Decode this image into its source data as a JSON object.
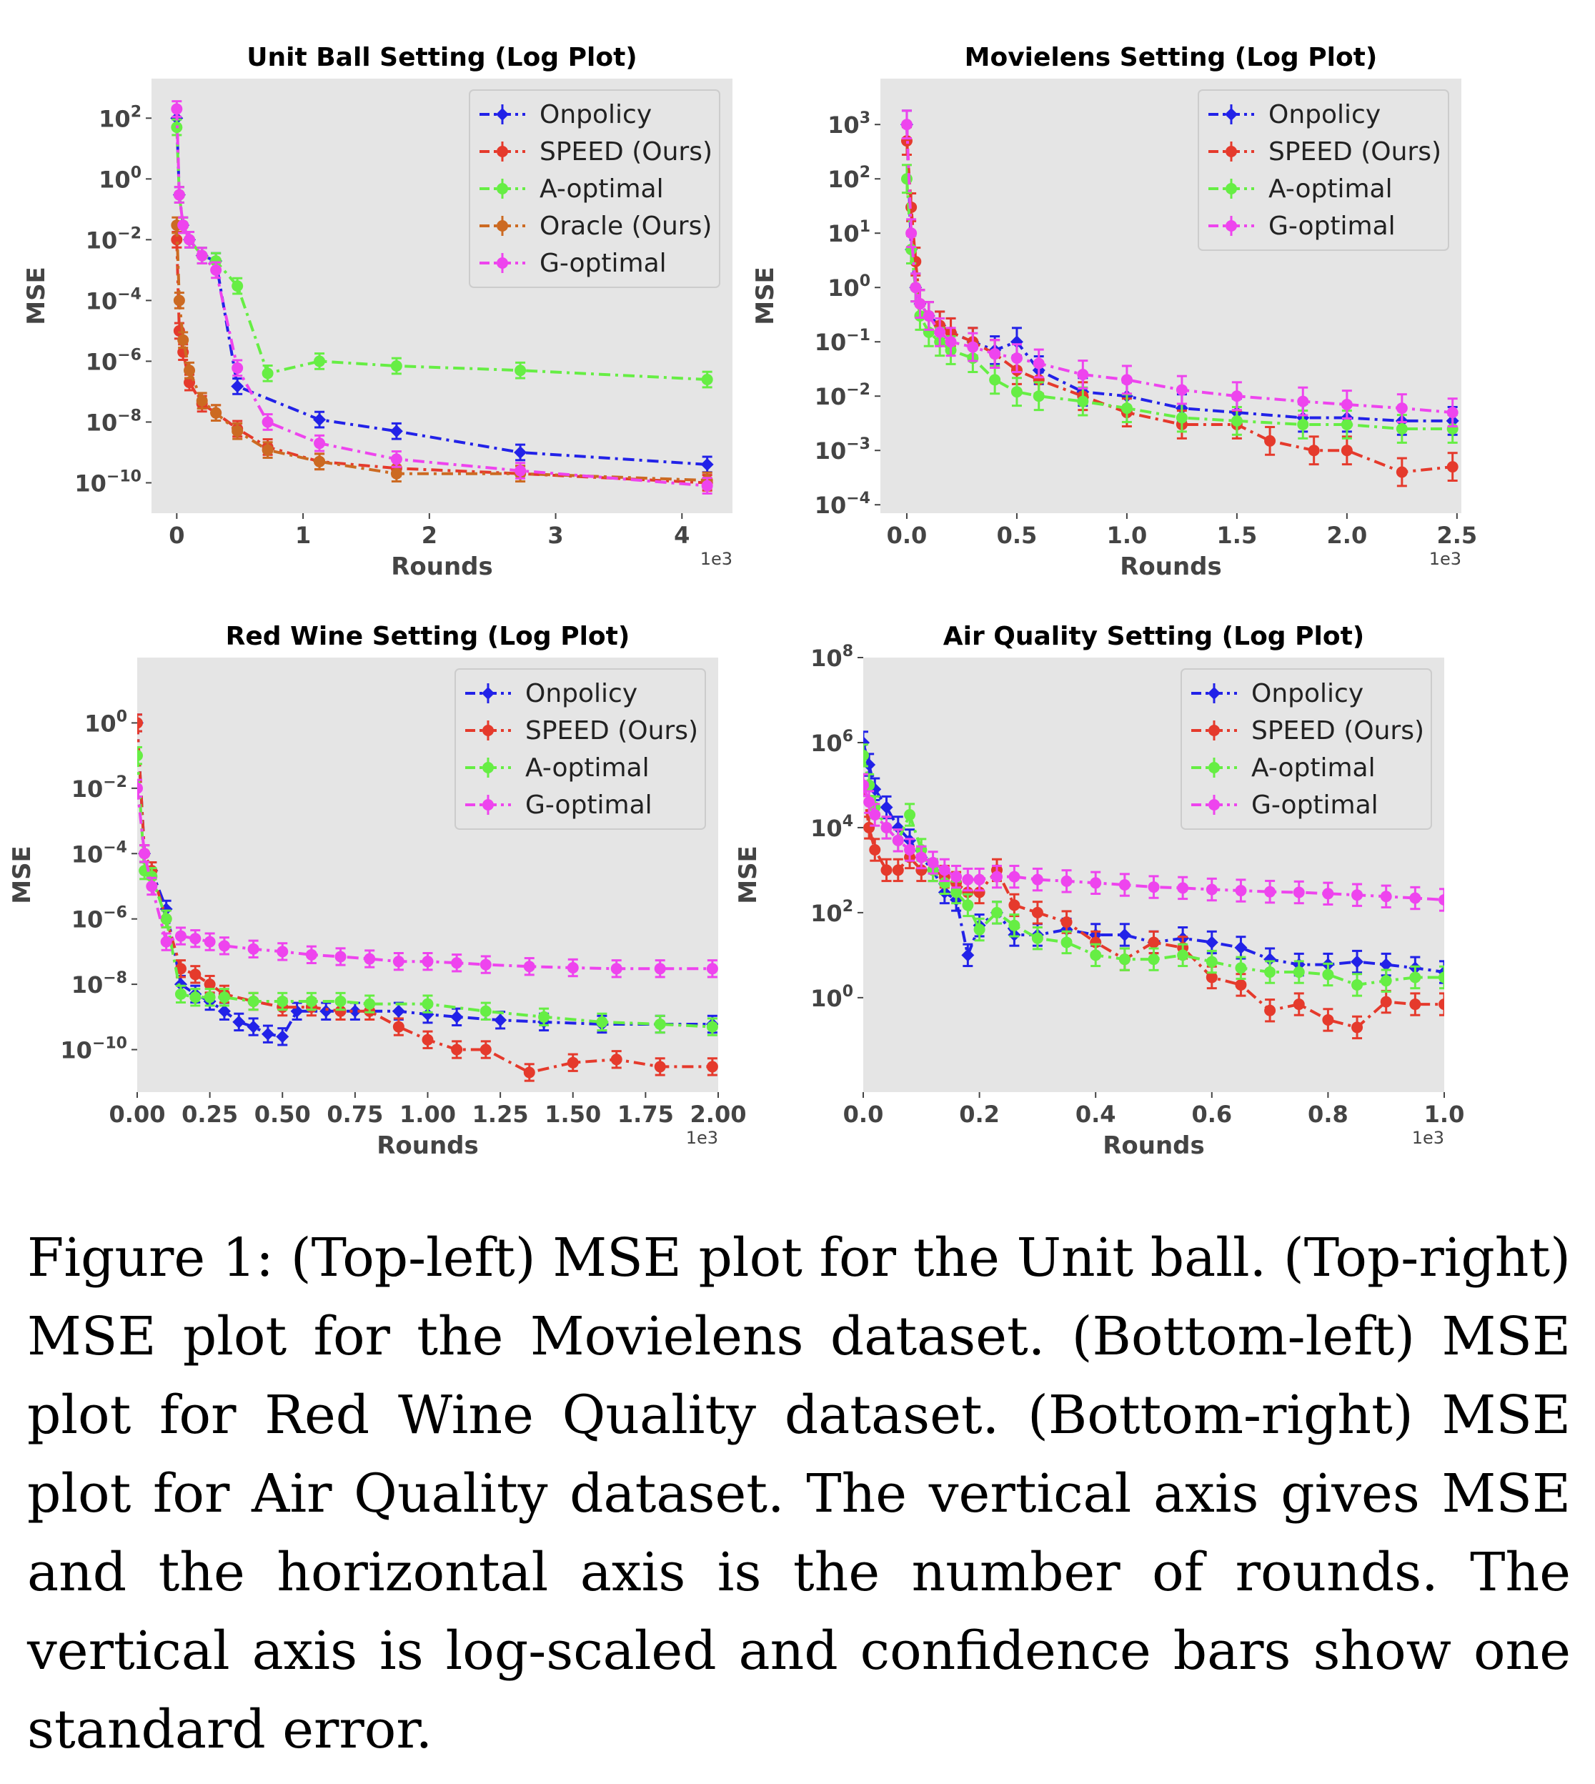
{
  "caption": "Figure 1: (Top-left) MSE plot for the Unit ball. (Top-right) MSE plot for the Movielens dataset. (Bottom-left) MSE plot for Red Wine Quality dataset. (Bottom-right) MSE plot for Air Quality dataset. The vertical axis gives MSE and the horizontal axis is the number of rounds. The vertical axis is log-scaled and confidence bars show one standard error.",
  "colors": {
    "Onpolicy": "#2222e8",
    "SPEED (Ours)": "#e53a2c",
    "A-optimal": "#66ee44",
    "Oracle (Ours)": "#cc6a22",
    "G-optimal": "#ee44ee"
  },
  "chart_data": [
    {
      "type": "line",
      "title": "Unit Ball Setting (Log Plot)",
      "xlabel": "Rounds",
      "ylabel": "MSE",
      "x_offset_label": "1e3",
      "yscale": "log",
      "grid": false,
      "legend": "top-right",
      "xlim": [
        -200,
        4400
      ],
      "ylim": [
        1e-11,
        2000
      ],
      "x_ticks": [
        {
          "v": 0,
          "l": "0"
        },
        {
          "v": 1000,
          "l": "1"
        },
        {
          "v": 2000,
          "l": "2"
        },
        {
          "v": 3000,
          "l": "3"
        },
        {
          "v": 4000,
          "l": "4"
        }
      ],
      "y_ticks": [
        {
          "e": 2,
          "l": "10"
        },
        {
          "e": 0,
          "l": "10"
        },
        {
          "e": -2,
          "l": "10"
        },
        {
          "e": -4,
          "l": "10"
        },
        {
          "e": -6,
          "l": "10"
        },
        {
          "e": -8,
          "l": "10"
        },
        {
          "e": -10,
          "l": "10"
        }
      ],
      "series": [
        {
          "name": "Onpolicy",
          "x": [
            0,
            20,
            50,
            100,
            200,
            310,
            480,
            1130,
            1740,
            2720,
            4200
          ],
          "y": [
            100,
            0.3,
            0.03,
            0.01,
            0.003,
            0.002,
            1.5e-07,
            1.2e-08,
            5e-09,
            1e-09,
            4e-10
          ]
        },
        {
          "name": "SPEED (Ours)",
          "x": [
            0,
            20,
            50,
            100,
            200,
            310,
            480,
            720,
            1130,
            1740,
            2720,
            4200
          ],
          "y": [
            0.01,
            1e-05,
            2e-06,
            2e-07,
            4e-08,
            2e-08,
            6e-09,
            1.5e-09,
            5e-10,
            3e-10,
            2e-10,
            1e-10
          ]
        },
        {
          "name": "A-optimal",
          "x": [
            0,
            20,
            50,
            100,
            200,
            310,
            480,
            720,
            1130,
            1740,
            2720,
            4200
          ],
          "y": [
            50,
            0.3,
            0.03,
            0.01,
            0.003,
            0.002,
            0.0003,
            4e-07,
            1e-06,
            7e-07,
            5e-07,
            2.5e-07
          ]
        },
        {
          "name": "Oracle (Ours)",
          "x": [
            0,
            20,
            50,
            100,
            200,
            310,
            480,
            720,
            1130,
            1740,
            2720,
            4200
          ],
          "y": [
            0.03,
            0.0001,
            5e-06,
            5e-07,
            5e-08,
            2e-08,
            5e-09,
            1.2e-09,
            5e-10,
            2e-10,
            2e-10,
            1.2e-10
          ]
        },
        {
          "name": "G-optimal",
          "x": [
            0,
            20,
            50,
            100,
            200,
            310,
            480,
            720,
            1130,
            1740,
            2720,
            4200
          ],
          "y": [
            200,
            0.3,
            0.03,
            0.01,
            0.003,
            0.001,
            6e-07,
            1e-08,
            2e-09,
            6e-10,
            2.5e-10,
            8e-11
          ]
        }
      ]
    },
    {
      "type": "line",
      "title": "Movielens Setting (Log Plot)",
      "xlabel": "Rounds",
      "ylabel": "MSE",
      "x_offset_label": "1e3",
      "yscale": "log",
      "grid": false,
      "legend": "top-right",
      "xlim": [
        -120,
        2520
      ],
      "ylim": [
        7e-05,
        7000
      ],
      "x_ticks": [
        {
          "v": 0,
          "l": "0.0"
        },
        {
          "v": 500,
          "l": "0.5"
        },
        {
          "v": 1000,
          "l": "1.0"
        },
        {
          "v": 1500,
          "l": "1.5"
        },
        {
          "v": 2000,
          "l": "2.0"
        },
        {
          "v": 2500,
          "l": "2.5"
        }
      ],
      "y_ticks": [
        {
          "e": 3,
          "l": "10"
        },
        {
          "e": 2,
          "l": "10"
        },
        {
          "e": 1,
          "l": "10"
        },
        {
          "e": 0,
          "l": "10"
        },
        {
          "e": -1,
          "l": "10"
        },
        {
          "e": -2,
          "l": "10"
        },
        {
          "e": -3,
          "l": "10"
        },
        {
          "e": -4,
          "l": "10"
        }
      ],
      "series": [
        {
          "name": "Onpolicy",
          "x": [
            0,
            20,
            40,
            60,
            100,
            150,
            200,
            300,
            400,
            500,
            600,
            800,
            1000,
            1250,
            1500,
            1800,
            2000,
            2250,
            2480
          ],
          "y": [
            1000,
            5,
            1,
            0.5,
            0.3,
            0.2,
            0.15,
            0.1,
            0.07,
            0.1,
            0.03,
            0.012,
            0.01,
            0.006,
            0.005,
            0.004,
            0.004,
            0.0035,
            0.0035
          ]
        },
        {
          "name": "SPEED (Ours)",
          "x": [
            0,
            20,
            40,
            60,
            100,
            150,
            200,
            300,
            400,
            500,
            600,
            800,
            1000,
            1250,
            1500,
            1650,
            1850,
            2000,
            2250,
            2480
          ],
          "y": [
            500,
            30,
            3,
            0.5,
            0.3,
            0.2,
            0.15,
            0.1,
            0.06,
            0.03,
            0.02,
            0.01,
            0.005,
            0.003,
            0.003,
            0.0015,
            0.001,
            0.001,
            0.0004,
            0.0005
          ]
        },
        {
          "name": "A-optimal",
          "x": [
            0,
            20,
            40,
            60,
            100,
            150,
            200,
            300,
            400,
            500,
            600,
            800,
            1000,
            1250,
            1500,
            1800,
            2000,
            2250,
            2480
          ],
          "y": [
            100,
            5,
            1,
            0.3,
            0.15,
            0.1,
            0.07,
            0.05,
            0.02,
            0.012,
            0.01,
            0.008,
            0.006,
            0.004,
            0.0035,
            0.003,
            0.003,
            0.0025,
            0.0025
          ]
        },
        {
          "name": "G-optimal",
          "x": [
            0,
            20,
            40,
            60,
            100,
            150,
            200,
            300,
            400,
            500,
            600,
            800,
            1000,
            1250,
            1500,
            1800,
            2000,
            2250,
            2480
          ],
          "y": [
            1000,
            10,
            1,
            0.5,
            0.3,
            0.15,
            0.1,
            0.08,
            0.06,
            0.05,
            0.04,
            0.025,
            0.02,
            0.013,
            0.01,
            0.008,
            0.007,
            0.006,
            0.005
          ]
        }
      ]
    },
    {
      "type": "line",
      "title": "Red Wine Setting (Log Plot)",
      "xlabel": "Rounds",
      "ylabel": "MSE",
      "x_offset_label": "1e3",
      "yscale": "log",
      "grid": false,
      "legend": "top-right",
      "xlim": [
        0,
        2000
      ],
      "ylim": [
        5e-12,
        100
      ],
      "x_ticks": [
        {
          "v": 0,
          "l": "0.00"
        },
        {
          "v": 250,
          "l": "0.25"
        },
        {
          "v": 500,
          "l": "0.50"
        },
        {
          "v": 750,
          "l": "0.75"
        },
        {
          "v": 1000,
          "l": "1.00"
        },
        {
          "v": 1250,
          "l": "1.25"
        },
        {
          "v": 1500,
          "l": "1.50"
        },
        {
          "v": 1750,
          "l": "1.75"
        },
        {
          "v": 2000,
          "l": "2.00"
        }
      ],
      "y_ticks": [
        {
          "e": 0,
          "l": "10"
        },
        {
          "e": -2,
          "l": "10"
        },
        {
          "e": -4,
          "l": "10"
        },
        {
          "e": -6,
          "l": "10"
        },
        {
          "e": -8,
          "l": "10"
        },
        {
          "e": -10,
          "l": "10"
        }
      ],
      "series": [
        {
          "name": "Onpolicy",
          "x": [
            0,
            25,
            50,
            100,
            150,
            200,
            250,
            300,
            350,
            400,
            450,
            500,
            550,
            650,
            750,
            900,
            1000,
            1100,
            1250,
            1400,
            1600,
            1800,
            1980
          ],
          "y": [
            1,
            0.0001,
            3e-05,
            2e-06,
            1e-08,
            5e-09,
            3e-09,
            1.5e-09,
            7e-10,
            5e-10,
            3e-10,
            2.5e-10,
            1.5e-09,
            1.5e-09,
            1.5e-09,
            1.5e-09,
            1.2e-09,
            1e-09,
            8e-10,
            7e-10,
            6e-10,
            6e-10,
            6e-10
          ]
        },
        {
          "name": "SPEED (Ours)",
          "x": [
            0,
            25,
            50,
            100,
            150,
            200,
            250,
            300,
            400,
            500,
            600,
            700,
            800,
            900,
            1000,
            1100,
            1200,
            1350,
            1500,
            1650,
            1800,
            1980
          ],
          "y": [
            1,
            0.0001,
            3e-05,
            1e-06,
            3e-08,
            2e-08,
            1e-08,
            5e-09,
            3e-09,
            2e-09,
            2e-09,
            1.5e-09,
            1.5e-09,
            5e-10,
            2e-10,
            1e-10,
            1e-10,
            2e-11,
            4e-11,
            5e-11,
            3e-11,
            3e-11
          ]
        },
        {
          "name": "A-optimal",
          "x": [
            0,
            25,
            50,
            100,
            150,
            200,
            250,
            300,
            400,
            500,
            600,
            700,
            800,
            1000,
            1200,
            1400,
            1600,
            1800,
            1980
          ],
          "y": [
            0.1,
            3e-05,
            2e-05,
            1e-06,
            5e-09,
            4e-09,
            4e-09,
            4e-09,
            3e-09,
            3e-09,
            3e-09,
            3e-09,
            2.5e-09,
            2.5e-09,
            1.5e-09,
            1e-09,
            7e-10,
            6e-10,
            5e-10
          ]
        },
        {
          "name": "G-optimal",
          "x": [
            0,
            25,
            50,
            100,
            150,
            200,
            250,
            300,
            400,
            500,
            600,
            700,
            800,
            900,
            1000,
            1100,
            1200,
            1350,
            1500,
            1650,
            1800,
            1980
          ],
          "y": [
            0.01,
            0.0001,
            1e-05,
            2e-07,
            3e-07,
            2.5e-07,
            2e-07,
            1.5e-07,
            1.2e-07,
            1e-07,
            8e-08,
            7e-08,
            6e-08,
            5e-08,
            5e-08,
            4.5e-08,
            4e-08,
            3.5e-08,
            3.2e-08,
            3e-08,
            3e-08,
            3e-08
          ]
        }
      ]
    },
    {
      "type": "line",
      "title": "Air Quality Setting (Log Plot)",
      "xlabel": "Rounds",
      "ylabel": "MSE",
      "x_offset_label": "1e3",
      "yscale": "log",
      "grid": false,
      "legend": "top-right",
      "xlim": [
        0,
        1000
      ],
      "ylim": [
        0.006,
        100000000
      ],
      "x_ticks": [
        {
          "v": 0,
          "l": "0.0"
        },
        {
          "v": 200,
          "l": "0.2"
        },
        {
          "v": 400,
          "l": "0.4"
        },
        {
          "v": 600,
          "l": "0.6"
        },
        {
          "v": 800,
          "l": "0.8"
        },
        {
          "v": 1000,
          "l": "1.0"
        }
      ],
      "y_ticks": [
        {
          "e": 8,
          "l": "10"
        },
        {
          "e": 6,
          "l": "10"
        },
        {
          "e": 4,
          "l": "10"
        },
        {
          "e": 2,
          "l": "10"
        },
        {
          "e": 0,
          "l": "10"
        }
      ],
      "series": [
        {
          "name": "Onpolicy",
          "x": [
            0,
            10,
            20,
            40,
            60,
            80,
            100,
            120,
            140,
            160,
            180,
            200,
            230,
            260,
            300,
            350,
            400,
            450,
            500,
            550,
            600,
            650,
            700,
            750,
            800,
            850,
            900,
            950,
            1000
          ],
          "y": [
            1000000,
            300000,
            80000,
            30000,
            10000,
            5000,
            2000,
            1000,
            300,
            200,
            10,
            50,
            100,
            30,
            30,
            40,
            30,
            30,
            20,
            25,
            20,
            15,
            8,
            6,
            6,
            7,
            6,
            5,
            4
          ]
        },
        {
          "name": "SPEED (Ours)",
          "x": [
            0,
            10,
            20,
            40,
            60,
            80,
            100,
            120,
            140,
            160,
            180,
            200,
            230,
            260,
            300,
            350,
            400,
            450,
            500,
            550,
            600,
            650,
            700,
            750,
            800,
            850,
            900,
            950,
            1000
          ],
          "y": [
            100000,
            10000,
            3000,
            1000,
            1000,
            2000,
            1000,
            1000,
            700,
            500,
            300,
            300,
            1000,
            150,
            100,
            60,
            20,
            8,
            20,
            15,
            3,
            2,
            0.5,
            0.7,
            0.3,
            0.2,
            0.8,
            0.7,
            0.7
          ]
        },
        {
          "name": "A-optimal",
          "x": [
            0,
            10,
            20,
            40,
            60,
            80,
            100,
            120,
            140,
            160,
            180,
            200,
            230,
            260,
            300,
            350,
            400,
            450,
            500,
            550,
            600,
            650,
            700,
            750,
            800,
            850,
            900,
            950,
            1000
          ],
          "y": [
            500000,
            100000,
            30000,
            10000,
            5000,
            20000,
            3000,
            1000,
            500,
            300,
            150,
            40,
            100,
            50,
            25,
            20,
            10,
            8,
            8,
            10,
            7,
            5,
            4,
            4,
            3.5,
            2,
            2.5,
            3,
            3
          ]
        },
        {
          "name": "G-optimal",
          "x": [
            0,
            10,
            20,
            40,
            60,
            80,
            100,
            120,
            140,
            160,
            180,
            200,
            230,
            260,
            300,
            350,
            400,
            450,
            500,
            550,
            600,
            650,
            700,
            750,
            800,
            850,
            900,
            950,
            1000
          ],
          "y": [
            100000,
            40000,
            20000,
            10000,
            5000,
            3000,
            2000,
            1500,
            1000,
            700,
            600,
            600,
            700,
            700,
            600,
            550,
            500,
            450,
            400,
            380,
            350,
            330,
            310,
            300,
            280,
            260,
            240,
            220,
            200
          ]
        }
      ]
    }
  ]
}
